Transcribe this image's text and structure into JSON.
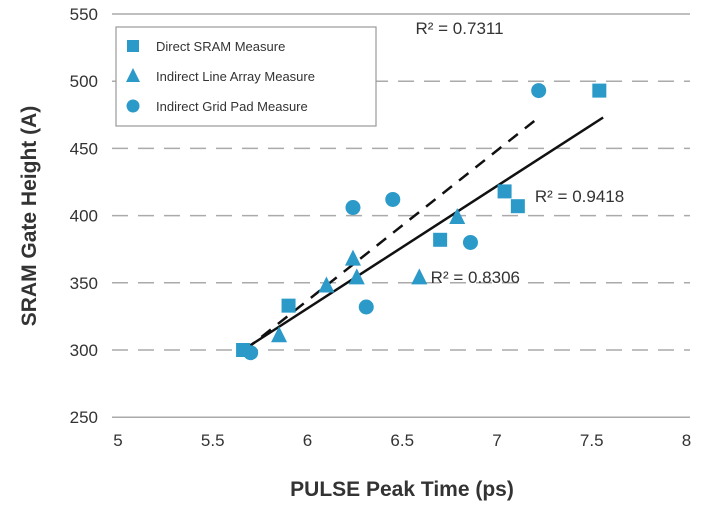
{
  "chart_data": {
    "type": "scatter",
    "title": "",
    "xlabel": "PULSE Peak Time (ps)",
    "ylabel": "SRAM Gate Height (A)",
    "xlim": [
      5,
      8
    ],
    "ylim": [
      250,
      550
    ],
    "xticks": [
      "5",
      "5.5",
      "6",
      "6.5",
      "7",
      "7.5",
      "8"
    ],
    "yticks": [
      "250",
      "300",
      "350",
      "400",
      "450",
      "500",
      "550"
    ],
    "grid": "horizontal dashed",
    "legend_position": "top-left",
    "marker_color": "#2b9ac9",
    "series": [
      {
        "name": "Direct SRAM Measure",
        "marker": "square",
        "points": [
          [
            5.66,
            300
          ],
          [
            5.9,
            333
          ],
          [
            6.7,
            382
          ],
          [
            7.04,
            418
          ],
          [
            7.11,
            407
          ],
          [
            7.54,
            493
          ]
        ]
      },
      {
        "name": "Indirect Line Array Measure",
        "marker": "triangle",
        "points": [
          [
            5.85,
            311
          ],
          [
            6.1,
            348
          ],
          [
            6.24,
            368
          ],
          [
            6.26,
            354
          ],
          [
            6.59,
            354
          ],
          [
            6.79,
            399
          ]
        ]
      },
      {
        "name": "Indirect Grid Pad Measure",
        "marker": "circle",
        "points": [
          [
            5.7,
            298
          ],
          [
            6.24,
            406
          ],
          [
            6.31,
            332
          ],
          [
            6.45,
            412
          ],
          [
            6.86,
            380
          ],
          [
            7.22,
            493
          ]
        ]
      }
    ],
    "trendlines": [
      {
        "style": "solid",
        "from": [
          5.66,
          300
        ],
        "to": [
          7.56,
          473
        ]
      },
      {
        "style": "dashed",
        "from": [
          5.67,
          300
        ],
        "to": [
          7.22,
          473
        ]
      }
    ],
    "annotations": [
      {
        "text": "R² = 0.7311",
        "at": [
          6.57,
          535
        ]
      },
      {
        "text": "R² = 0.9418",
        "at": [
          7.2,
          410
        ]
      },
      {
        "text": "R² = 0.8306",
        "at": [
          6.65,
          350
        ]
      }
    ]
  }
}
